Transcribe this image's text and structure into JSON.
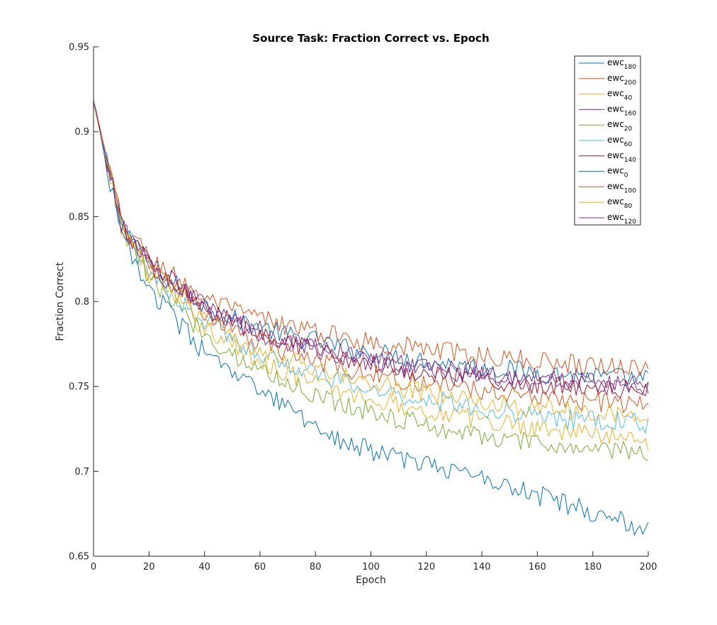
{
  "chart_data": {
    "type": "line",
    "title": "Source Task: Fraction Correct vs. Epoch",
    "xlabel": "Epoch",
    "ylabel": "Fraction Correct",
    "xlim": [
      0,
      200
    ],
    "ylim": [
      0.65,
      0.95
    ],
    "xticks": [
      0,
      20,
      40,
      60,
      80,
      100,
      120,
      140,
      160,
      180,
      200
    ],
    "yticks": [
      0.65,
      0.7,
      0.75,
      0.8,
      0.85,
      0.9,
      0.95
    ],
    "xtick_labels": [
      "0",
      "20",
      "40",
      "60",
      "80",
      "100",
      "120",
      "140",
      "160",
      "180",
      "200"
    ],
    "ytick_labels": [
      "0.65",
      "0.7",
      "0.75",
      "0.8",
      "0.85",
      "0.9",
      "0.95"
    ],
    "grid": false,
    "legend_position": "top-right",
    "x": [
      0,
      10,
      20,
      30,
      40,
      50,
      60,
      70,
      80,
      90,
      100,
      110,
      120,
      130,
      140,
      150,
      160,
      170,
      180,
      190,
      200
    ],
    "noise_amplitude": 0.006,
    "series": [
      {
        "name": "ewc",
        "subscript": "180",
        "color": "#0072BD",
        "values": [
          0.918,
          0.846,
          0.822,
          0.81,
          0.798,
          0.79,
          0.785,
          0.78,
          0.777,
          0.773,
          0.77,
          0.768,
          0.765,
          0.763,
          0.761,
          0.76,
          0.758,
          0.757,
          0.756,
          0.755,
          0.754
        ]
      },
      {
        "name": "ewc",
        "subscript": "200",
        "color": "#D95319",
        "values": [
          0.918,
          0.848,
          0.826,
          0.814,
          0.802,
          0.795,
          0.79,
          0.786,
          0.782,
          0.779,
          0.776,
          0.774,
          0.772,
          0.77,
          0.768,
          0.766,
          0.765,
          0.764,
          0.763,
          0.762,
          0.761
        ]
      },
      {
        "name": "ewc",
        "subscript": "40",
        "color": "#EDB120",
        "values": [
          0.918,
          0.844,
          0.816,
          0.8,
          0.785,
          0.774,
          0.765,
          0.758,
          0.752,
          0.747,
          0.743,
          0.739,
          0.736,
          0.733,
          0.73,
          0.728,
          0.726,
          0.724,
          0.722,
          0.72,
          0.718
        ]
      },
      {
        "name": "ewc",
        "subscript": "160",
        "color": "#7E2F8E",
        "values": [
          0.918,
          0.846,
          0.823,
          0.81,
          0.798,
          0.789,
          0.783,
          0.778,
          0.774,
          0.77,
          0.767,
          0.764,
          0.762,
          0.76,
          0.758,
          0.756,
          0.755,
          0.754,
          0.753,
          0.752,
          0.751
        ]
      },
      {
        "name": "ewc",
        "subscript": "20",
        "color": "#77AC30",
        "values": [
          0.918,
          0.843,
          0.814,
          0.797,
          0.781,
          0.769,
          0.76,
          0.752,
          0.745,
          0.74,
          0.735,
          0.731,
          0.727,
          0.724,
          0.721,
          0.718,
          0.716,
          0.714,
          0.713,
          0.712,
          0.71
        ]
      },
      {
        "name": "ewc",
        "subscript": "60",
        "color": "#4DBEEE",
        "values": [
          0.918,
          0.845,
          0.818,
          0.802,
          0.788,
          0.778,
          0.77,
          0.763,
          0.757,
          0.752,
          0.748,
          0.745,
          0.742,
          0.74,
          0.737,
          0.735,
          0.733,
          0.731,
          0.73,
          0.729,
          0.728
        ]
      },
      {
        "name": "ewc",
        "subscript": "140",
        "color": "#A2142F",
        "values": [
          0.918,
          0.846,
          0.822,
          0.808,
          0.796,
          0.787,
          0.78,
          0.775,
          0.771,
          0.767,
          0.764,
          0.761,
          0.758,
          0.756,
          0.754,
          0.752,
          0.751,
          0.75,
          0.749,
          0.748,
          0.747
        ]
      },
      {
        "name": "ewc",
        "subscript": "0",
        "color": "#0072BD",
        "values": [
          0.918,
          0.838,
          0.808,
          0.788,
          0.77,
          0.757,
          0.747,
          0.737,
          0.727,
          0.718,
          0.712,
          0.708,
          0.704,
          0.7,
          0.697,
          0.692,
          0.686,
          0.681,
          0.676,
          0.671,
          0.664
        ]
      },
      {
        "name": "ewc",
        "subscript": "100",
        "color": "#D95319",
        "values": [
          0.918,
          0.845,
          0.821,
          0.807,
          0.793,
          0.784,
          0.776,
          0.77,
          0.765,
          0.761,
          0.757,
          0.754,
          0.752,
          0.75,
          0.748,
          0.746,
          0.744,
          0.742,
          0.741,
          0.74,
          0.739
        ]
      },
      {
        "name": "ewc",
        "subscript": "80",
        "color": "#EDB120",
        "values": [
          0.918,
          0.845,
          0.819,
          0.804,
          0.79,
          0.78,
          0.772,
          0.766,
          0.761,
          0.756,
          0.752,
          0.749,
          0.746,
          0.743,
          0.741,
          0.739,
          0.737,
          0.736,
          0.735,
          0.734,
          0.733
        ]
      },
      {
        "name": "ewc",
        "subscript": "120",
        "color": "#7E2F8E",
        "values": [
          0.918,
          0.846,
          0.822,
          0.808,
          0.796,
          0.788,
          0.781,
          0.776,
          0.772,
          0.768,
          0.765,
          0.762,
          0.76,
          0.758,
          0.756,
          0.754,
          0.753,
          0.752,
          0.751,
          0.75,
          0.749
        ]
      }
    ]
  }
}
